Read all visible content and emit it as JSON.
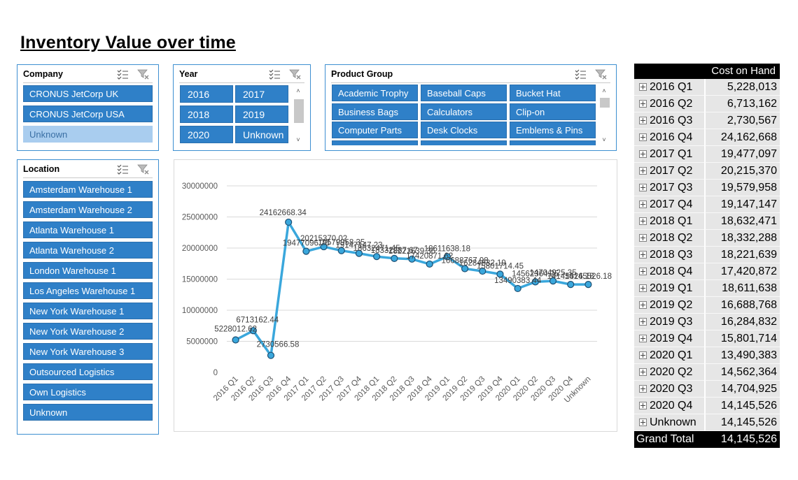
{
  "page_title": "Inventory Value over time",
  "slicers": {
    "company": {
      "title": "Company",
      "items": [
        "CRONUS JetCorp UK",
        "CRONUS JetCorp USA",
        "Unknown"
      ]
    },
    "year": {
      "title": "Year",
      "items": [
        "2016",
        "2017",
        "2018",
        "2019",
        "2020",
        "Unknown"
      ]
    },
    "product_group": {
      "title": "Product Group",
      "items": [
        "Academic Trophy",
        "Baseball Caps",
        "Bucket Hat",
        "Business Bags",
        "Calculators",
        "Clip-on",
        "Computer Parts",
        "Desk Clocks",
        "Emblems & Pins"
      ]
    },
    "location": {
      "title": "Location",
      "items": [
        "Amsterdam Warehouse 1",
        "Amsterdam Warehouse 2",
        "Atlanta Warehouse 1",
        "Atlanta Warehouse 2",
        "London Warehouse 1",
        "Los Angeles Warehouse 1",
        "New York Warehouse 1",
        "New York Warehouse 2",
        "New York Warehouse 3",
        "Outsourced Logistics",
        "Own Logistics",
        "Unknown"
      ]
    }
  },
  "icons": {
    "multiselect": "multi-select-icon",
    "clear_filter": "clear-filter-icon",
    "expand": "expand-plus-icon"
  },
  "colors": {
    "accent": "#2f80c8",
    "line": "#3aa7dc",
    "unselected": "#a9cdef"
  },
  "pivot": {
    "header": "Cost on Hand",
    "rows": [
      {
        "label": "2016 Q1",
        "value": "5,228,013"
      },
      {
        "label": "2016 Q2",
        "value": "6,713,162"
      },
      {
        "label": "2016 Q3",
        "value": "2,730,567"
      },
      {
        "label": "2016 Q4",
        "value": "24,162,668"
      },
      {
        "label": "2017 Q1",
        "value": "19,477,097"
      },
      {
        "label": "2017 Q2",
        "value": "20,215,370"
      },
      {
        "label": "2017 Q3",
        "value": "19,579,958"
      },
      {
        "label": "2017 Q4",
        "value": "19,147,147"
      },
      {
        "label": "2018 Q1",
        "value": "18,632,471"
      },
      {
        "label": "2018 Q2",
        "value": "18,332,288"
      },
      {
        "label": "2018 Q3",
        "value": "18,221,639"
      },
      {
        "label": "2018 Q4",
        "value": "17,420,872"
      },
      {
        "label": "2019 Q1",
        "value": "18,611,638"
      },
      {
        "label": "2019 Q2",
        "value": "16,688,768"
      },
      {
        "label": "2019 Q3",
        "value": "16,284,832"
      },
      {
        "label": "2019 Q4",
        "value": "15,801,714"
      },
      {
        "label": "2020 Q1",
        "value": "13,490,383"
      },
      {
        "label": "2020 Q2",
        "value": "14,562,364"
      },
      {
        "label": "2020 Q3",
        "value": "14,704,925"
      },
      {
        "label": "2020 Q4",
        "value": "14,145,526"
      },
      {
        "label": "Unknown",
        "value": "14,145,526"
      }
    ],
    "total_label": "Grand Total",
    "total_value": "14,145,526"
  },
  "chart_data": {
    "type": "line",
    "categories": [
      "2016 Q1",
      "2016 Q2",
      "2016 Q3",
      "2016 Q4",
      "2017 Q1",
      "2017 Q2",
      "2017 Q3",
      "2017 Q4",
      "2018 Q1",
      "2018 Q2",
      "2018 Q3",
      "2018 Q4",
      "2019 Q1",
      "2019 Q2",
      "2019 Q3",
      "2019 Q4",
      "2020 Q1",
      "2020 Q2",
      "2020 Q3",
      "2020 Q4",
      "Unknown"
    ],
    "values": [
      5228012.62,
      6713162.44,
      2730566.58,
      24162668.34,
      19477096.76,
      20215370.02,
      19579958.35,
      19147147.23,
      18632471.45,
      18332287.67,
      18221639.36,
      17420871.62,
      18611638.18,
      16688767.98,
      16284832.19,
      15801714.45,
      13490383.44,
      14562364.25,
      14704925.35,
      14145526.18,
      14145526.18
    ],
    "data_labels": [
      "5228012.62",
      "6713162.44",
      "2730566.58",
      "24162668.34",
      "19477096.76",
      "20215370.02",
      "19579958.35",
      "19147147.23",
      "18632471.45",
      "18332287.67",
      "18221639.36",
      "17420871.62",
      "18611638.18",
      "16688767.98",
      "16284832.19",
      "15801714.45",
      "13490383.44",
      "14562364.25",
      "14704925.35",
      "14145526.18",
      "14145526.18"
    ],
    "y_ticks": [
      "0",
      "5000000",
      "10000000",
      "15000000",
      "20000000",
      "25000000",
      "30000000"
    ],
    "ylim": [
      0,
      30000000
    ],
    "grid": true,
    "legend": "none"
  }
}
